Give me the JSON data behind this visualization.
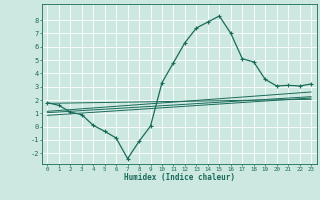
{
  "xlabel": "Humidex (Indice chaleur)",
  "xlim": [
    -0.5,
    23.5
  ],
  "ylim": [
    -2.8,
    9.2
  ],
  "xticks": [
    0,
    1,
    2,
    3,
    4,
    5,
    6,
    7,
    8,
    9,
    10,
    11,
    12,
    13,
    14,
    15,
    16,
    17,
    18,
    19,
    20,
    21,
    22,
    23
  ],
  "yticks": [
    -2,
    -1,
    0,
    1,
    2,
    3,
    4,
    5,
    6,
    7,
    8
  ],
  "bg_color": "#cce8e0",
  "line_color": "#1a6b5a",
  "grid_color": "#b0d8cc",
  "main_curve": [
    [
      0,
      1.8
    ],
    [
      1,
      1.6
    ],
    [
      2,
      1.1
    ],
    [
      3,
      0.9
    ],
    [
      4,
      0.1
    ],
    [
      5,
      -0.35
    ],
    [
      6,
      -0.85
    ],
    [
      7,
      -2.4
    ],
    [
      8,
      -1.1
    ],
    [
      9,
      0.05
    ],
    [
      10,
      3.3
    ],
    [
      11,
      4.8
    ],
    [
      12,
      6.3
    ],
    [
      13,
      7.4
    ],
    [
      14,
      7.85
    ],
    [
      15,
      8.3
    ],
    [
      16,
      7.0
    ],
    [
      17,
      5.1
    ],
    [
      18,
      4.85
    ],
    [
      19,
      3.55
    ],
    [
      20,
      3.05
    ],
    [
      21,
      3.1
    ],
    [
      22,
      3.05
    ],
    [
      23,
      3.2
    ]
  ],
  "line2": [
    [
      0,
      1.75
    ],
    [
      23,
      2.05
    ]
  ],
  "line3": [
    [
      0,
      1.05
    ],
    [
      23,
      2.25
    ]
  ],
  "line4": [
    [
      0,
      0.85
    ],
    [
      23,
      2.15
    ]
  ],
  "line5": [
    [
      0,
      1.15
    ],
    [
      23,
      2.6
    ]
  ]
}
